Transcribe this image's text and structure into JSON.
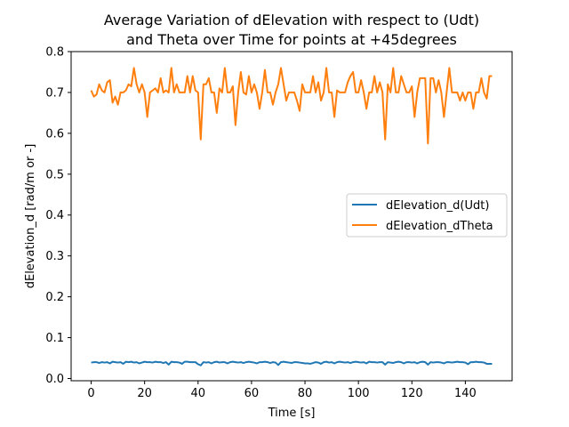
{
  "chart_data": {
    "type": "line",
    "title_lines": [
      "Average Variation of dElevation with respect to (Udt)",
      "and Theta over Time for points at +45degrees"
    ],
    "xlabel": "Time [s]",
    "ylabel": "dElevation_d [rad/m or -]",
    "xlim": [
      -7.5,
      157.5
    ],
    "ylim": [
      -0.0055,
      0.8
    ],
    "xticks": [
      0,
      20,
      40,
      60,
      80,
      100,
      120,
      140
    ],
    "yticks": [
      0.0,
      0.1,
      0.2,
      0.3,
      0.4,
      0.5,
      0.6,
      0.7,
      0.8
    ],
    "xtick_labels": [
      "0",
      "20",
      "40",
      "60",
      "80",
      "100",
      "120",
      "140"
    ],
    "ytick_labels": [
      "0.0",
      "0.1",
      "0.2",
      "0.3",
      "0.4",
      "0.5",
      "0.6",
      "0.7",
      "0.8"
    ],
    "grid": false,
    "legend_position": "center-right",
    "series": [
      {
        "name": "dElevation_d(Udt)",
        "color": "#1f77b4",
        "x": [
          0,
          1,
          2,
          3,
          4,
          5,
          6,
          7,
          8,
          9,
          10,
          11,
          12,
          13,
          14,
          15,
          16,
          17,
          18,
          19,
          20,
          21,
          22,
          23,
          24,
          25,
          26,
          27,
          28,
          29,
          30,
          31,
          32,
          33,
          34,
          35,
          36,
          37,
          38,
          39,
          40,
          41,
          42,
          43,
          44,
          45,
          46,
          47,
          48,
          49,
          50,
          51,
          52,
          53,
          54,
          55,
          56,
          57,
          58,
          59,
          60,
          61,
          62,
          63,
          64,
          65,
          66,
          67,
          68,
          69,
          70,
          71,
          72,
          73,
          74,
          75,
          76,
          77,
          78,
          79,
          80,
          81,
          82,
          83,
          84,
          85,
          86,
          87,
          88,
          89,
          90,
          91,
          92,
          93,
          94,
          95,
          96,
          97,
          98,
          99,
          100,
          101,
          102,
          103,
          104,
          105,
          106,
          107,
          108,
          109,
          110,
          111,
          112,
          113,
          114,
          115,
          116,
          117,
          118,
          119,
          120,
          121,
          122,
          123,
          124,
          125,
          126,
          127,
          128,
          129,
          130,
          131,
          132,
          133,
          134,
          135,
          136,
          137,
          138,
          139,
          140,
          141,
          142,
          143,
          144,
          145,
          146,
          147,
          148,
          149,
          150
        ],
        "y": [
          0.039,
          0.04,
          0.04,
          0.038,
          0.04,
          0.039,
          0.04,
          0.037,
          0.041,
          0.04,
          0.039,
          0.04,
          0.036,
          0.041,
          0.04,
          0.041,
          0.039,
          0.04,
          0.037,
          0.039,
          0.041,
          0.04,
          0.04,
          0.039,
          0.041,
          0.04,
          0.04,
          0.038,
          0.04,
          0.034,
          0.041,
          0.04,
          0.04,
          0.039,
          0.036,
          0.041,
          0.041,
          0.04,
          0.04,
          0.04,
          0.035,
          0.032,
          0.04,
          0.039,
          0.04,
          0.037,
          0.04,
          0.041,
          0.039,
          0.04,
          0.04,
          0.037,
          0.04,
          0.041,
          0.04,
          0.039,
          0.04,
          0.038,
          0.04,
          0.041,
          0.04,
          0.039,
          0.037,
          0.04,
          0.04,
          0.041,
          0.04,
          0.038,
          0.04,
          0.039,
          0.033,
          0.04,
          0.041,
          0.04,
          0.039,
          0.038,
          0.04,
          0.04,
          0.039,
          0.038,
          0.037,
          0.037,
          0.036,
          0.038,
          0.04,
          0.039,
          0.036,
          0.04,
          0.041,
          0.039,
          0.04,
          0.037,
          0.04,
          0.041,
          0.04,
          0.039,
          0.04,
          0.038,
          0.04,
          0.041,
          0.04,
          0.039,
          0.04,
          0.037,
          0.041,
          0.04,
          0.04,
          0.039,
          0.04,
          0.04,
          0.034,
          0.04,
          0.039,
          0.038,
          0.04,
          0.041,
          0.04,
          0.037,
          0.04,
          0.04,
          0.039,
          0.04,
          0.037,
          0.04,
          0.041,
          0.04,
          0.034,
          0.04,
          0.039,
          0.04,
          0.04,
          0.039,
          0.037,
          0.04,
          0.04,
          0.039,
          0.04,
          0.041,
          0.04,
          0.04,
          0.039,
          0.035,
          0.04,
          0.04,
          0.041,
          0.04,
          0.04,
          0.039,
          0.036,
          0.036,
          0.036
        ]
      },
      {
        "name": "dElevation_dTheta",
        "color": "#ff7f0e",
        "x": [
          0,
          1,
          2,
          3,
          4,
          5,
          6,
          7,
          8,
          9,
          10,
          11,
          12,
          13,
          14,
          15,
          16,
          17,
          18,
          19,
          20,
          21,
          22,
          23,
          24,
          25,
          26,
          27,
          28,
          29,
          30,
          31,
          32,
          33,
          34,
          35,
          36,
          37,
          38,
          39,
          40,
          41,
          42,
          43,
          44,
          45,
          46,
          47,
          48,
          49,
          50,
          51,
          52,
          53,
          54,
          55,
          56,
          57,
          58,
          59,
          60,
          61,
          62,
          63,
          64,
          65,
          66,
          67,
          68,
          69,
          70,
          71,
          72,
          73,
          74,
          75,
          76,
          77,
          78,
          79,
          80,
          81,
          82,
          83,
          84,
          85,
          86,
          87,
          88,
          89,
          90,
          91,
          92,
          93,
          94,
          95,
          96,
          97,
          98,
          99,
          100,
          101,
          102,
          103,
          104,
          105,
          106,
          107,
          108,
          109,
          110,
          111,
          112,
          113,
          114,
          115,
          116,
          117,
          118,
          119,
          120,
          121,
          122,
          123,
          124,
          125,
          126,
          127,
          128,
          129,
          130,
          131,
          132,
          133,
          134,
          135,
          136,
          137,
          138,
          139,
          140,
          141,
          142,
          143,
          144,
          145,
          146,
          147,
          148,
          149,
          150
        ],
        "y": [
          0.705,
          0.69,
          0.695,
          0.72,
          0.705,
          0.7,
          0.725,
          0.73,
          0.675,
          0.69,
          0.67,
          0.7,
          0.7,
          0.705,
          0.72,
          0.715,
          0.76,
          0.72,
          0.7,
          0.72,
          0.7,
          0.64,
          0.7,
          0.705,
          0.71,
          0.7,
          0.735,
          0.7,
          0.705,
          0.7,
          0.76,
          0.7,
          0.72,
          0.7,
          0.7,
          0.7,
          0.74,
          0.7,
          0.74,
          0.705,
          0.7,
          0.585,
          0.72,
          0.72,
          0.735,
          0.7,
          0.7,
          0.65,
          0.71,
          0.7,
          0.76,
          0.7,
          0.7,
          0.715,
          0.62,
          0.7,
          0.75,
          0.7,
          0.695,
          0.74,
          0.7,
          0.72,
          0.7,
          0.66,
          0.7,
          0.755,
          0.7,
          0.7,
          0.67,
          0.7,
          0.72,
          0.76,
          0.72,
          0.68,
          0.7,
          0.7,
          0.7,
          0.68,
          0.655,
          0.72,
          0.7,
          0.7,
          0.7,
          0.74,
          0.7,
          0.725,
          0.68,
          0.7,
          0.76,
          0.7,
          0.7,
          0.64,
          0.705,
          0.7,
          0.7,
          0.7,
          0.725,
          0.74,
          0.75,
          0.7,
          0.7,
          0.73,
          0.7,
          0.66,
          0.7,
          0.7,
          0.74,
          0.7,
          0.725,
          0.7,
          0.585,
          0.72,
          0.7,
          0.76,
          0.7,
          0.7,
          0.74,
          0.72,
          0.7,
          0.7,
          0.715,
          0.64,
          0.7,
          0.735,
          0.735,
          0.735,
          0.575,
          0.735,
          0.735,
          0.7,
          0.73,
          0.7,
          0.64,
          0.7,
          0.76,
          0.7,
          0.7,
          0.7,
          0.68,
          0.7,
          0.68,
          0.7,
          0.7,
          0.66,
          0.7,
          0.7,
          0.735,
          0.7,
          0.685,
          0.74,
          0.74
        ]
      }
    ]
  }
}
